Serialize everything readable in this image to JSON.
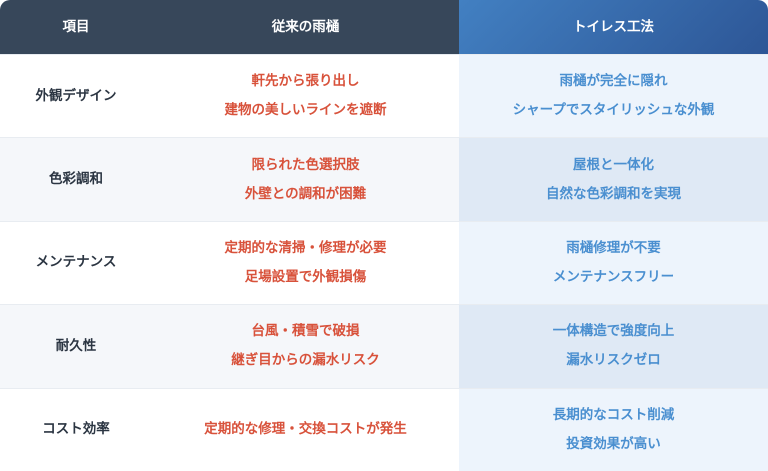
{
  "header": [
    "項目",
    "従来の雨樋",
    "トイレス工法"
  ],
  "rows": [
    {
      "item": "外観デザイン",
      "conventional": [
        "軒先から張り出し",
        "建物の美しいラインを遮断"
      ],
      "toiless": [
        "雨樋が完全に隠れ",
        "シャープでスタイリッシュな外観"
      ]
    },
    {
      "item": "色彩調和",
      "conventional": [
        "限られた色選択肢",
        "外壁との調和が困難"
      ],
      "toiless": [
        "屋根と一体化",
        "自然な色彩調和を実現"
      ]
    },
    {
      "item": "メンテナンス",
      "conventional": [
        "定期的な清掃・修理が必要",
        "足場設置で外観損傷"
      ],
      "toiless": [
        "雨樋修理が不要",
        "メンテナンスフリー"
      ]
    },
    {
      "item": "耐久性",
      "conventional": [
        "台風・積雪で破損",
        "継ぎ目からの漏水リスク"
      ],
      "toiless": [
        "一体構造で強度向上",
        "漏水リスクゼロ"
      ]
    },
    {
      "item": "コスト効率",
      "conventional": [
        "定期的な修理・交換コストが発生"
      ],
      "toiless": [
        "長期的なコスト削減",
        "投資効果が高い"
      ]
    }
  ],
  "colors": {
    "header": "#37475a",
    "accent": "#3a6fb0",
    "conventional_text": "#d8523b",
    "toiless_text": "#4a8fd0"
  }
}
